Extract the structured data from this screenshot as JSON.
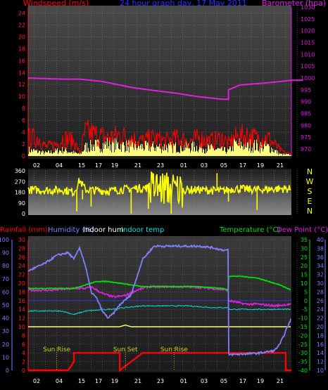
{
  "header": {
    "windspeed_label": "Windspeed (m/s)",
    "title": "24 hour graph day, 17 May 2011",
    "barometer_label": "Barometer (hpa)"
  },
  "compass": [
    "N",
    "W",
    "S",
    "E",
    "N"
  ],
  "lower_header": {
    "rainfall_label": "Rainfall (mm)",
    "humidity_label": "Humidity (%)",
    "indoor_hum_label": "Indoor hum",
    "indoor_temp_label": "Indoor temp",
    "temperature_label": "Temperature (°C)",
    "dew_label": "Dew Point (°C)"
  },
  "annotations": [
    "Sun Rise",
    "Sun Set",
    "Sun Rise"
  ],
  "colors": {
    "windspeed": "#ff0000",
    "gust_bars": "#ffff80",
    "barometer": "#e020e0",
    "direction": "#ffff00",
    "humidity": "#8080ff",
    "indoor_hum": "#ffffff",
    "indoor_temp": "#00e0e0",
    "temperature": "#00e000",
    "dewpoint": "#e020e0",
    "rain": "#ff0000",
    "baseline": "#ffff80"
  },
  "chart_data": [
    {
      "type": "area",
      "name": "wind",
      "x_ticks": [
        "02",
        "04",
        "15",
        "17",
        "19",
        "21",
        "23",
        "01",
        "03",
        "05",
        "17",
        "19",
        "21"
      ],
      "y_left_ticks": [
        0,
        2,
        4,
        6,
        8,
        10,
        12,
        14,
        16,
        18,
        20,
        22,
        24
      ],
      "y_right_ticks": [
        970,
        975,
        980,
        985,
        990,
        995,
        1000,
        1005,
        1010,
        1015,
        1020,
        1025,
        1030
      ],
      "ylim_left": [
        0,
        25
      ],
      "ylim_right": [
        967,
        1030
      ],
      "barometer": [
        [
          0,
          1000
        ],
        [
          6,
          999.5
        ],
        [
          9,
          999.5
        ],
        [
          13,
          998.5
        ],
        [
          16,
          997
        ],
        [
          18,
          996
        ],
        [
          21,
          995
        ],
        [
          26,
          993.5
        ],
        [
          30,
          992
        ],
        [
          34,
          991
        ],
        [
          35,
          991
        ],
        [
          35,
          995
        ],
        [
          37,
          997
        ],
        [
          42,
          998
        ],
        [
          46,
          999
        ],
        [
          48,
          999
        ]
      ],
      "windspeed_profile": [
        [
          0,
          3
        ],
        [
          2,
          3
        ],
        [
          3,
          1.5
        ],
        [
          5,
          2
        ],
        [
          6,
          3
        ],
        [
          8,
          2.5
        ],
        [
          9,
          0.5
        ],
        [
          10,
          4
        ],
        [
          12,
          3.5
        ],
        [
          14,
          3
        ],
        [
          16,
          3.5
        ],
        [
          18,
          3
        ],
        [
          20,
          2.5
        ],
        [
          22,
          3
        ],
        [
          24,
          2.5
        ],
        [
          26,
          3
        ],
        [
          28,
          2.5
        ],
        [
          30,
          3
        ],
        [
          32,
          2.5
        ],
        [
          34,
          3
        ],
        [
          35,
          2
        ],
        [
          36,
          3
        ],
        [
          38,
          3.5
        ],
        [
          40,
          3
        ],
        [
          42,
          3
        ],
        [
          44,
          1
        ],
        [
          45,
          0.5
        ],
        [
          46,
          0.5
        ]
      ],
      "gust_profile": [
        [
          0,
          1
        ],
        [
          3,
          0.5
        ],
        [
          6,
          1
        ],
        [
          9,
          0.3
        ],
        [
          10,
          1.5
        ],
        [
          14,
          2
        ],
        [
          20,
          1.5
        ],
        [
          26,
          1.5
        ],
        [
          30,
          1.5
        ],
        [
          35,
          0.8
        ],
        [
          36,
          2
        ],
        [
          42,
          1.5
        ],
        [
          44,
          0.3
        ],
        [
          46,
          0.2
        ]
      ]
    },
    {
      "type": "scatter",
      "name": "direction",
      "y_ticks": [
        0,
        90,
        180,
        270,
        360
      ],
      "ylim": [
        0,
        360
      ],
      "mean_profile": [
        [
          0,
          200
        ],
        [
          4,
          195
        ],
        [
          6,
          200
        ],
        [
          8,
          180
        ],
        [
          9,
          280
        ],
        [
          10,
          200
        ],
        [
          14,
          190
        ],
        [
          18,
          210
        ],
        [
          22,
          220
        ],
        [
          26,
          200
        ],
        [
          30,
          200
        ],
        [
          34,
          190
        ],
        [
          36,
          210
        ],
        [
          40,
          200
        ],
        [
          44,
          210
        ],
        [
          46,
          205
        ]
      ],
      "spikes": [
        [
          8.5,
          20
        ],
        [
          9.5,
          120
        ],
        [
          11,
          60
        ],
        [
          18,
          0
        ],
        [
          21,
          40
        ],
        [
          25,
          0
        ],
        [
          33,
          340
        ],
        [
          35,
          100
        ],
        [
          40,
          30
        ]
      ]
    },
    {
      "type": "line",
      "name": "meteo",
      "y_humidity_ticks": [
        0,
        10,
        20,
        30,
        40,
        50,
        60,
        70,
        80,
        90,
        100
      ],
      "y_rain_ticks": [
        0,
        2,
        4,
        6,
        8,
        10,
        12,
        14,
        16,
        18,
        20,
        22,
        24,
        26,
        28,
        30
      ],
      "y_temp_ticks": [
        -40,
        -35,
        -30,
        -25,
        -20,
        -15,
        -10,
        -5,
        0,
        5,
        10,
        15,
        20,
        25,
        30,
        35
      ],
      "y_dew_ticks": [
        10,
        12,
        14,
        16,
        18,
        20,
        22,
        24,
        26,
        28,
        30,
        32,
        34,
        36,
        38,
        40
      ],
      "ylim_humidity": [
        0,
        100
      ],
      "ylim_temp": [
        -40,
        35
      ],
      "humidity": [
        [
          0,
          76
        ],
        [
          3,
          82
        ],
        [
          5,
          88
        ],
        [
          7,
          90
        ],
        [
          8,
          85
        ],
        [
          9,
          94
        ],
        [
          10,
          80
        ],
        [
          11,
          60
        ],
        [
          12,
          55
        ],
        [
          13,
          45
        ],
        [
          14,
          40
        ],
        [
          15,
          44
        ],
        [
          16,
          50
        ],
        [
          18,
          58
        ],
        [
          20,
          85
        ],
        [
          22,
          95
        ],
        [
          30,
          95
        ],
        [
          32,
          94
        ],
        [
          34,
          92
        ],
        [
          35,
          92
        ],
        [
          35,
          12
        ],
        [
          40,
          13
        ],
        [
          43,
          15
        ],
        [
          44,
          20
        ],
        [
          46,
          40
        ]
      ],
      "temperature": [
        [
          0,
          7
        ],
        [
          4,
          7
        ],
        [
          8,
          7
        ],
        [
          10,
          9
        ],
        [
          12,
          11
        ],
        [
          14,
          11
        ],
        [
          18,
          9
        ],
        [
          20,
          8
        ],
        [
          22,
          8
        ],
        [
          30,
          8
        ],
        [
          34,
          7
        ],
        [
          35,
          6
        ],
        [
          35,
          14
        ],
        [
          37,
          14
        ],
        [
          40,
          13
        ],
        [
          42,
          11
        ],
        [
          44,
          9
        ],
        [
          46,
          6
        ]
      ],
      "dewpoint": [
        [
          0,
          6
        ],
        [
          4,
          6
        ],
        [
          8,
          7
        ],
        [
          10,
          7
        ],
        [
          11,
          8
        ],
        [
          12,
          6
        ],
        [
          13,
          4
        ],
        [
          15,
          2
        ],
        [
          17,
          3
        ],
        [
          19,
          6
        ],
        [
          21,
          8
        ],
        [
          24,
          8
        ],
        [
          28,
          8
        ],
        [
          32,
          7
        ],
        [
          35,
          6
        ],
        [
          35,
          0
        ],
        [
          38,
          -2
        ],
        [
          40,
          -2
        ],
        [
          43,
          -3
        ],
        [
          46,
          -2
        ]
      ],
      "indoor_temp": [
        [
          0,
          -6
        ],
        [
          6,
          -6
        ],
        [
          8,
          -8
        ],
        [
          10,
          -6
        ],
        [
          14,
          -5
        ],
        [
          17,
          -4
        ],
        [
          20,
          -3
        ],
        [
          24,
          -3
        ],
        [
          28,
          -3
        ],
        [
          32,
          -4
        ],
        [
          35,
          -4
        ],
        [
          35,
          -5
        ],
        [
          40,
          -5
        ],
        [
          46,
          -5
        ]
      ],
      "indoor_hum": [
        [
          0,
          -15
        ],
        [
          16,
          -15
        ],
        [
          17,
          -14
        ],
        [
          18,
          -15
        ],
        [
          35,
          -15
        ],
        [
          46,
          -15
        ]
      ],
      "rain_mm": [
        [
          0,
          0
        ],
        [
          7,
          0
        ],
        [
          8,
          2
        ],
        [
          8,
          4
        ],
        [
          16,
          4
        ],
        [
          16,
          0
        ],
        [
          17,
          1
        ],
        [
          18,
          2
        ],
        [
          19,
          3
        ],
        [
          20,
          4
        ],
        [
          34,
          4
        ],
        [
          35,
          4
        ],
        [
          35,
          4
        ],
        [
          45,
          4
        ],
        [
          45,
          0
        ],
        [
          46,
          0
        ]
      ],
      "sun_events_x": [
        5,
        17,
        25.5
      ]
    }
  ]
}
